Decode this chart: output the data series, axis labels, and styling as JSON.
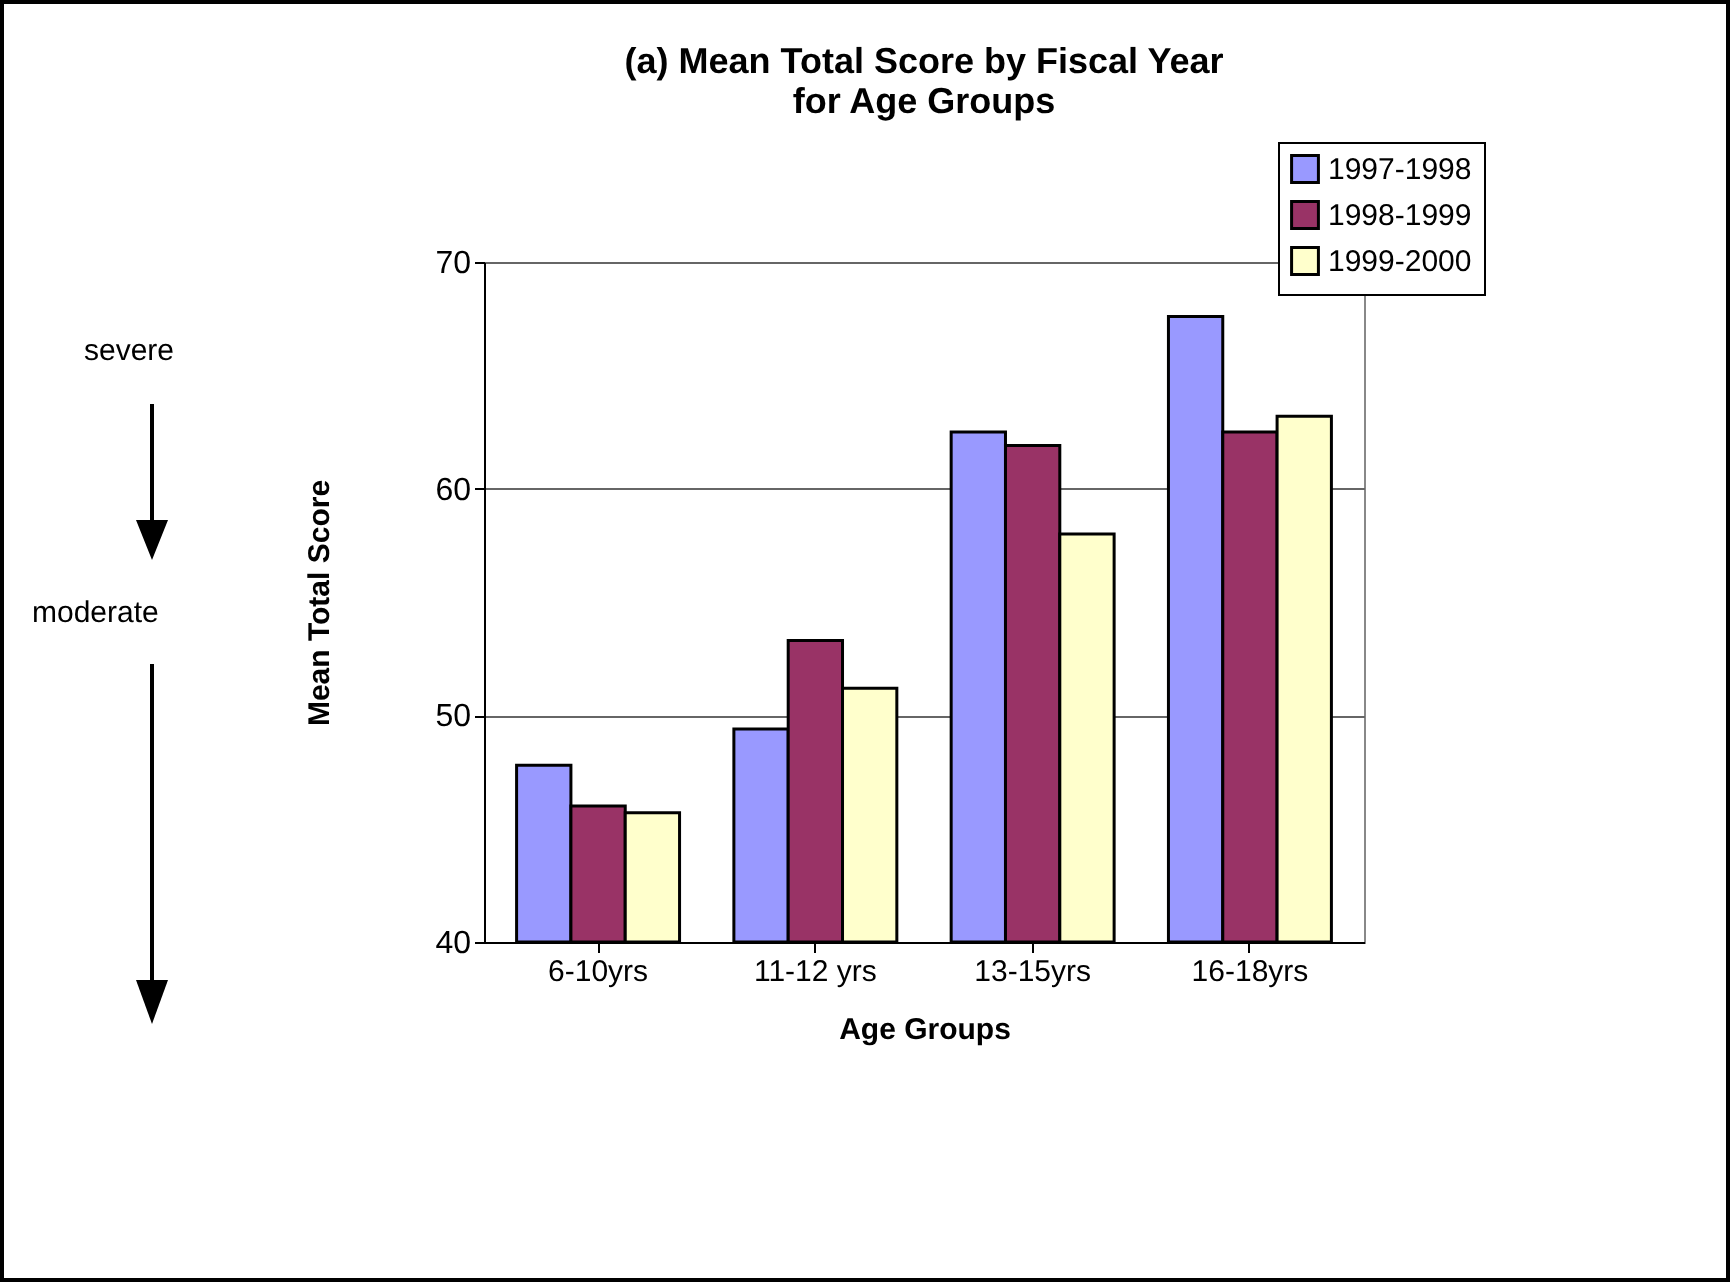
{
  "chart_data": {
    "type": "bar",
    "title": [
      "(a) Mean Total Score by Fiscal Year",
      "for Age Groups"
    ],
    "xlabel": "Age Groups",
    "ylabel": "Mean Total Score",
    "categories": [
      "6-10yrs",
      "11-12 yrs",
      "13-15yrs",
      "16-18yrs"
    ],
    "series": [
      {
        "name": "1997-1998",
        "color": "#9999ff",
        "values": [
          47.8,
          49.4,
          62.5,
          67.6
        ]
      },
      {
        "name": "1998-1999",
        "color": "#993366",
        "values": [
          46.0,
          53.3,
          61.9,
          62.5
        ]
      },
      {
        "name": "1999-2000",
        "color": "#ffffcc",
        "values": [
          45.7,
          51.2,
          58.0,
          63.2
        ]
      }
    ],
    "ylim": [
      40,
      70
    ],
    "yticks": [
      40,
      50,
      60,
      70
    ],
    "grid": "y",
    "legend": "top right",
    "annotations": [
      "severe",
      "moderate"
    ]
  }
}
